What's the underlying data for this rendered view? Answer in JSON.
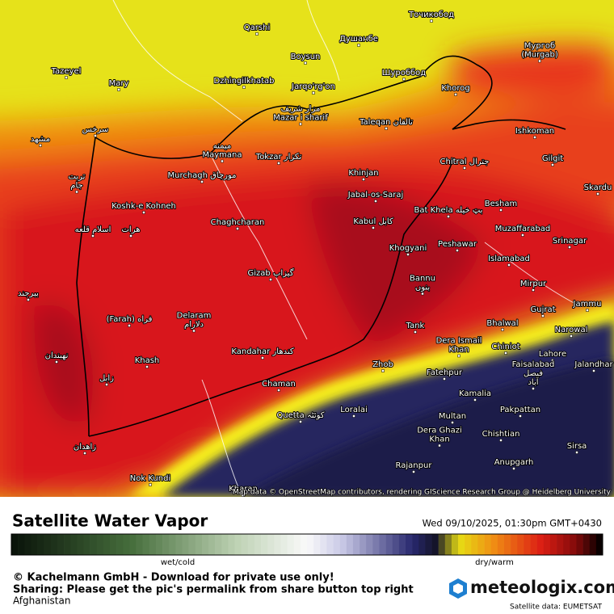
{
  "map": {
    "labels": [
      [
        "Qarshi"
      ],
      [
        "Boysun"
      ],
      [
        "Душанбе"
      ],
      [
        "Точикобод"
      ],
      [
        "Мургоб",
        "(Murgab)"
      ],
      [
        "Tazeyel"
      ],
      [
        "Mary"
      ],
      [
        "Dzhingilkhatab"
      ],
      [
        "Jarqo'rg'on"
      ],
      [
        "Шуроббод"
      ],
      [
        "Khorog"
      ],
      [
        "مزار شریف",
        "Mazar i sharif"
      ],
      [
        "Taleqan تالقان"
      ],
      [
        "Ishkoman"
      ],
      [
        "سرخس"
      ],
      [
        "مشهد"
      ],
      [
        "Gilgit"
      ],
      [
        "میمنه",
        "Maymana"
      ],
      [
        "Tokzar تكزار"
      ],
      [
        "Chitral جترال"
      ],
      [
        "Murchagh مورچاق"
      ],
      [
        "Khinjan"
      ],
      [
        "Skardu"
      ],
      [
        "تربت",
        "جام"
      ],
      [
        "Jabal-os-Saraj"
      ],
      [
        "Besham"
      ],
      [
        "Koshk-e Kohneh"
      ],
      [
        "Bat Khela بټ خیله"
      ],
      [
        "Kabul کابل"
      ],
      [
        "Chaghcharan"
      ],
      [
        "Muzaffarabad"
      ],
      [
        "اسلام قلعه"
      ],
      [
        "هرات"
      ],
      [
        "Peshawar"
      ],
      [
        "Srinagar"
      ],
      [
        "Khogyani"
      ],
      [
        "Islamabad"
      ],
      [
        "Gizab گیزاب"
      ],
      [
        "Bannu",
        "بنوں"
      ],
      [
        "Mirpur"
      ],
      [
        "بیرجند"
      ],
      [
        "Jammu"
      ],
      [
        "Gujrat"
      ],
      [
        "(Farah) فراه"
      ],
      [
        "Delaram",
        "دلارام"
      ],
      [
        "Bhalwal"
      ],
      [
        "Tank"
      ],
      [
        "Narowal"
      ],
      [
        "Dera Ismail",
        "Khan"
      ],
      [
        "Chiniot"
      ],
      [
        "Lahore"
      ],
      [
        "نهبندان"
      ],
      [
        "Kandahar کندهار"
      ],
      [
        "Khash"
      ],
      [
        "Jalandhar"
      ],
      [
        "Zhob"
      ],
      [
        "Fatehpur"
      ],
      [
        "Faisalabad",
        "فیصل",
        "آباد"
      ],
      [
        "زابل"
      ],
      [
        "Chaman"
      ],
      [
        "Kamalia"
      ],
      [
        "Loralai"
      ],
      [
        "Quetta کوئٹہ"
      ],
      [
        "Pakpattan"
      ],
      [
        "Multan"
      ],
      [
        "Dera Ghazi",
        "Khan"
      ],
      [
        "Chishtian"
      ],
      [
        "زاهدان"
      ],
      [
        "Sirsa"
      ],
      [
        "Anupgarh"
      ],
      [
        "Rajanpur"
      ],
      [
        "Nok Kundi"
      ],
      [
        "Kharan"
      ]
    ],
    "attribution": "Map data © OpenStreetMap contributors, rendering GIScience Research Group @ Heidelberg University"
  },
  "footer": {
    "title": "Satellite Water Vapor",
    "datetime": "Wed 09/10/2025, 01:30pm GMT+0430",
    "scale_left": "wet/cold",
    "scale_right": "dry/warm",
    "copyright": "© Kachelmann GmbH - Download for private use only!",
    "sharing": "Sharing: Please get the pic's permalink from share button top right",
    "region": "Afghanistan",
    "brand": "meteologix.com",
    "source": "Satellite data: EUMETSAT"
  }
}
